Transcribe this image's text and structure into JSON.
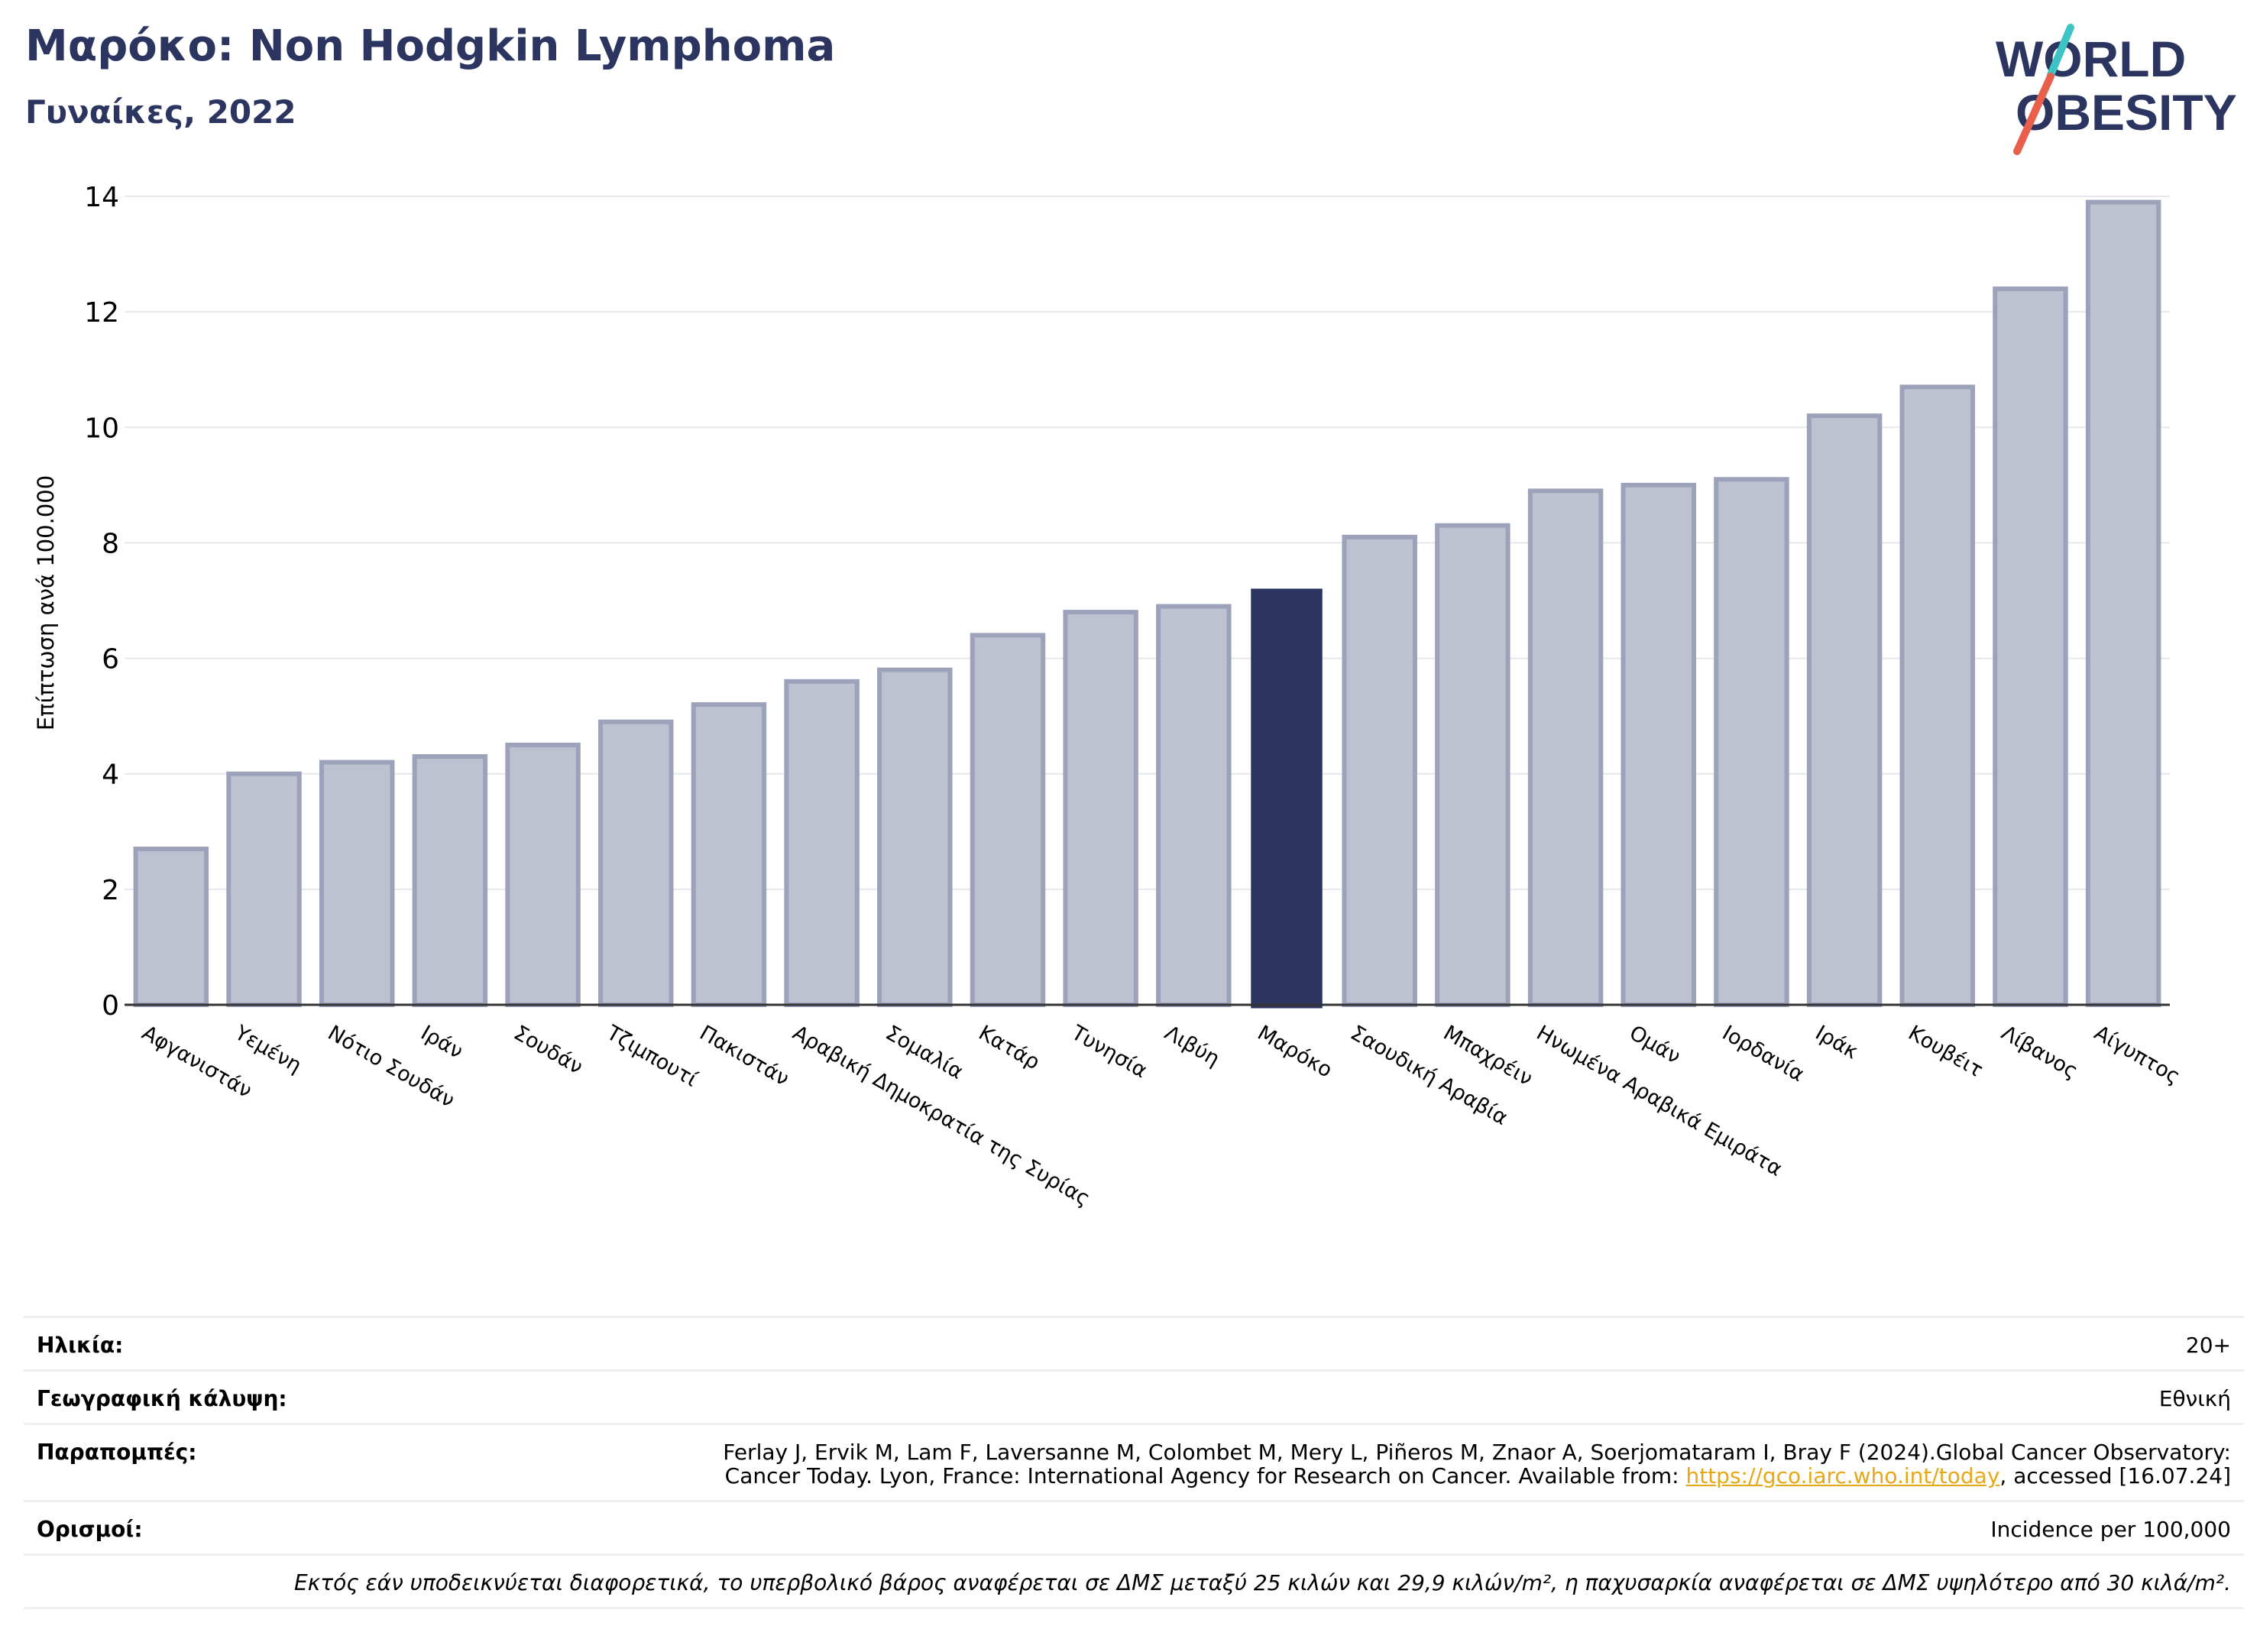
{
  "header": {
    "title": "Μαρόκο: Non Hodgkin Lymphoma",
    "subtitle": "Γυναίκες, 2022"
  },
  "logo": {
    "line1": "WORLD",
    "line2": "OBESITY",
    "text_color": "#2b3560",
    "slash_colors": [
      "#3ec4c4",
      "#e8604c"
    ]
  },
  "chart_data": {
    "type": "bar",
    "title": "Μαρόκο: Non Hodgkin Lymphoma",
    "subtitle": "Γυναίκες, 2022",
    "ylabel": "Επίπτωση ανά 100.000",
    "xlabel": "",
    "ylim": [
      0,
      14
    ],
    "yticks": [
      0,
      2,
      4,
      6,
      8,
      10,
      12,
      14
    ],
    "grid": true,
    "highlight": "Μαρόκο",
    "colors": {
      "bar": "#bec1cf",
      "bar_edge": "#9ca2ba",
      "highlight": "#2b3560",
      "grid": "#e6e8ee"
    },
    "categories": [
      "Αφγανιστάν",
      "Υεμένη",
      "Νότιο Σουδάν",
      "Ιράν",
      "Σουδάν",
      "Τζιμπουτί",
      "Πακιστάν",
      "Αραβική Δημοκρατία της Συρίας",
      "Σομαλία",
      "Κατάρ",
      "Τυνησία",
      "Λιβύη",
      "Μαρόκο",
      "Σαουδική Αραβία",
      "Μπαχρέιν",
      "Ηνωμένα Αραβικά Εμιράτα",
      "Ομάν",
      "Ιορδανία",
      "Ιράκ",
      "Κουβέιτ",
      "Λίβανος",
      "Αίγυπτος"
    ],
    "values": [
      2.7,
      4.0,
      4.2,
      4.3,
      4.5,
      4.9,
      5.2,
      5.6,
      5.8,
      6.4,
      6.8,
      6.9,
      7.2,
      8.1,
      8.3,
      8.9,
      9.0,
      9.1,
      10.2,
      10.7,
      12.4,
      13.9
    ]
  },
  "info": {
    "age_label": "Ηλικία:",
    "age_value": "20+",
    "coverage_label": "Γεωγραφική κάλυψη:",
    "coverage_value": "Εθνική",
    "refs_label": "Παραπομπές:",
    "refs_line1": "Ferlay J, Ervik M, Lam F, Laversanne M, Colombet M, Mery L, Piñeros M, Znaor A, Soerjomataram I, Bray F (2024).Global Cancer Observatory:",
    "refs_line2_pre": "Cancer Today. Lyon, France: International Agency for Research on Cancer. Available from: ",
    "refs_link": "https://gco.iarc.who.int/today",
    "refs_line2_post": ", accessed [16.07.24]",
    "definitions_label": "Ορισμοί:",
    "definitions_value": "Incidence per 100,000",
    "footnote": "Εκτός εάν υποδεικνύεται διαφορετικά, το υπερβολικό βάρος αναφέρεται σε ΔΜΣ μεταξύ 25 κιλών και 29,9 κιλών/m², η παχυσαρκία αναφέρεται σε ΔΜΣ υψηλότερο από 30 κιλά/m²."
  }
}
